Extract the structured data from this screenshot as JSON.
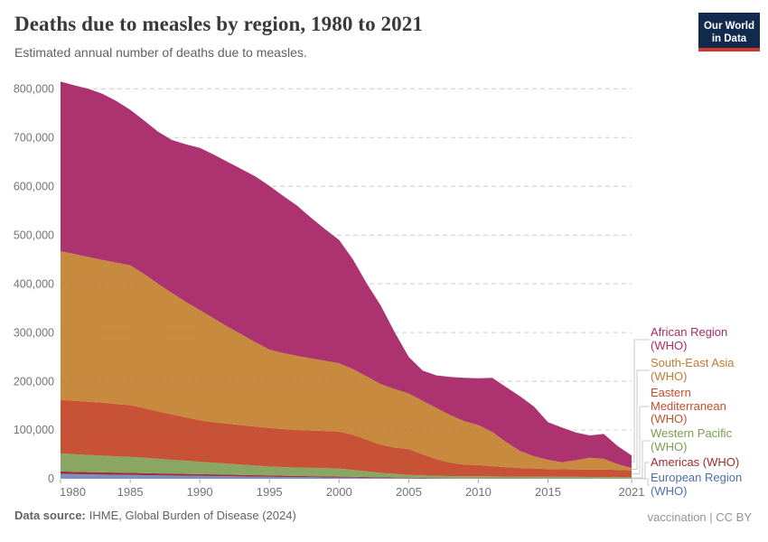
{
  "header": {
    "title": "Deaths due to measles by region, 1980 to 2021",
    "subtitle": "Estimated annual number of deaths due to measles.",
    "logo": {
      "line1": "Our World",
      "line2": "in Data"
    }
  },
  "footer": {
    "source_label": "Data source:",
    "source_value": "IHME, Global Burden of Disease (2024)",
    "credit": "vaccination | CC BY"
  },
  "colors": {
    "logo_bg": "#122a4e",
    "logo_accent": "#d0392e",
    "grid": "#dcdcdc",
    "grid_overlay": "rgba(110,110,110,0.14)",
    "axis_text": "#737373",
    "tick": "#a8a8a8",
    "connector": "#c9c9c9",
    "title_text": "#3a3a3a",
    "subtitle_text": "#616161"
  },
  "chart_data": {
    "type": "area",
    "stacked": true,
    "title": "Deaths due to measles by region, 1980 to 2021",
    "subtitle": "Estimated annual number of deaths due to measles.",
    "xlabel": "",
    "ylabel": "Deaths",
    "grid": true,
    "legend_position": "right",
    "xlim": [
      1980,
      2021
    ],
    "ylim": [
      0,
      800000
    ],
    "x_ticks": [
      1980,
      1985,
      1990,
      1995,
      2000,
      2005,
      2010,
      2015,
      2021
    ],
    "y_ticks": [
      0,
      100000,
      200000,
      300000,
      400000,
      500000,
      600000,
      700000,
      800000
    ],
    "y_tick_labels": [
      "0",
      "100,000",
      "200,000",
      "300,000",
      "400,000",
      "500,000",
      "600,000",
      "700,000",
      "800,000"
    ],
    "x": [
      1980,
      1981,
      1982,
      1983,
      1984,
      1985,
      1986,
      1987,
      1988,
      1989,
      1990,
      1991,
      1992,
      1993,
      1994,
      1995,
      1996,
      1997,
      1998,
      1999,
      2000,
      2001,
      2002,
      2003,
      2004,
      2005,
      2006,
      2007,
      2008,
      2009,
      2010,
      2011,
      2012,
      2013,
      2014,
      2015,
      2016,
      2017,
      2018,
      2019,
      2020,
      2021
    ],
    "series_order": "bottom_to_top",
    "series": [
      {
        "name": "European Region (WHO)",
        "color": "#7a92c3",
        "label_color": "#4c6fb0",
        "values": [
          10000,
          9500,
          9000,
          8600,
          8200,
          7800,
          7400,
          7000,
          6600,
          6200,
          6000,
          5600,
          5200,
          4800,
          4400,
          4000,
          3700,
          3400,
          3100,
          2800,
          2500,
          2200,
          1900,
          1600,
          1400,
          1200,
          1000,
          900,
          800,
          700,
          600,
          600,
          500,
          500,
          500,
          400,
          400,
          400,
          400,
          400,
          400,
          400
        ]
      },
      {
        "name": "Americas (WHO)",
        "color": "#9e2f33",
        "label_color": "#a02b31",
        "values": [
          5000,
          4900,
          4800,
          4600,
          4500,
          4400,
          4200,
          4000,
          3900,
          3800,
          3500,
          3400,
          3300,
          3200,
          3000,
          2800,
          2600,
          2400,
          2300,
          2200,
          2000,
          1800,
          1600,
          1400,
          1200,
          1000,
          900,
          700,
          600,
          500,
          500,
          400,
          400,
          400,
          300,
          400,
          400,
          400,
          400,
          400,
          300,
          300
        ]
      },
      {
        "name": "Western Pacific (WHO)",
        "color": "#89a762",
        "label_color": "#7a9e50",
        "values": [
          37000,
          36100,
          35200,
          34300,
          33300,
          32800,
          31400,
          30000,
          28500,
          27000,
          25500,
          24000,
          22500,
          21000,
          19600,
          18200,
          17700,
          17200,
          17100,
          17000,
          16500,
          14000,
          11500,
          9000,
          7400,
          5800,
          5100,
          4400,
          4100,
          4000,
          4000,
          3900,
          3700,
          3500,
          3500,
          3200,
          3100,
          3000,
          2900,
          2800,
          2600,
          2300
        ]
      },
      {
        "name": "Eastern Mediterranean (WHO)",
        "color": "#c75236",
        "label_color": "#c44e2b",
        "values": [
          110000,
          109500,
          109000,
          108500,
          107500,
          106000,
          102000,
          97000,
          93000,
          89000,
          85000,
          83000,
          82000,
          81000,
          80000,
          79000,
          78000,
          77000,
          76500,
          76000,
          76000,
          72000,
          65000,
          58000,
          54000,
          53000,
          43000,
          34000,
          27500,
          23800,
          22900,
          21100,
          18900,
          17600,
          16800,
          16000,
          15600,
          15200,
          15300,
          15400,
          14700,
          14000
        ]
      },
      {
        "name": "South-East Asia (WHO)",
        "color": "#c88a3e",
        "label_color": "#c07b33",
        "values": [
          305000,
          301000,
          297000,
          293000,
          290000,
          287000,
          275000,
          262000,
          249000,
          237000,
          226000,
          213000,
          199000,
          186000,
          173000,
          161000,
          156000,
          152000,
          148000,
          144000,
          140000,
          135000,
          130000,
          124000,
          120000,
          114000,
          110000,
          105000,
          97000,
          89000,
          82000,
          70000,
          51500,
          35000,
          25000,
          19000,
          14500,
          19000,
          24000,
          22000,
          12000,
          5000
        ]
      },
      {
        "name": "African Region (WHO)",
        "color": "#ad3370",
        "label_color": "#ad2a62",
        "values": [
          348000,
          346000,
          345000,
          341000,
          331500,
          319000,
          315000,
          312000,
          314000,
          323000,
          333000,
          336000,
          338000,
          339000,
          340000,
          336000,
          322000,
          308000,
          288000,
          270000,
          253000,
          225000,
          190000,
          161000,
          116000,
          75000,
          62000,
          67000,
          79000,
          89000,
          96000,
          111000,
          113000,
          112000,
          102000,
          77000,
          71000,
          57000,
          46000,
          51000,
          37000,
          26000
        ]
      }
    ]
  }
}
